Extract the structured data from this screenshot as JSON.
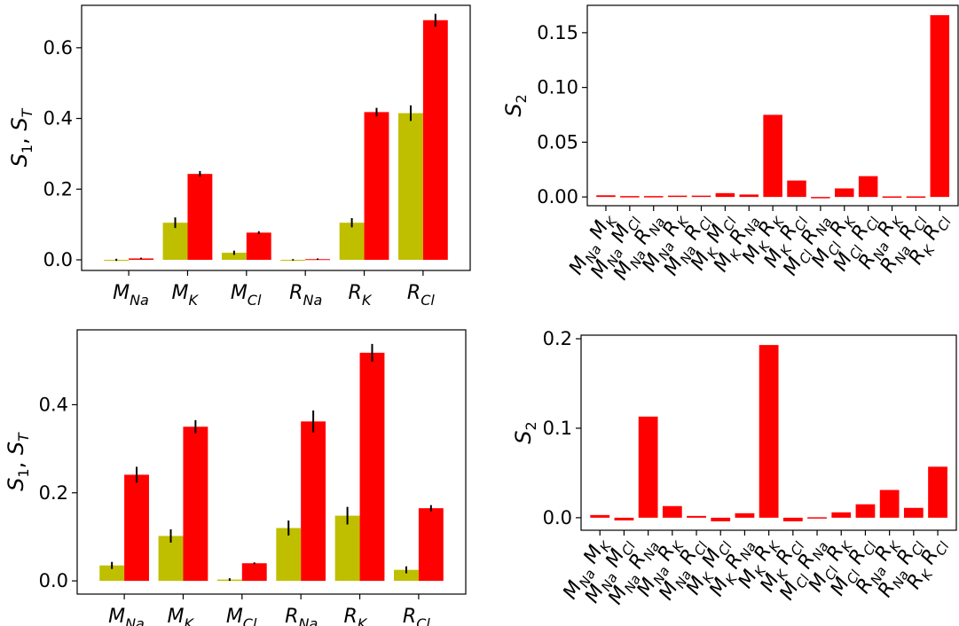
{
  "chart_data": [
    {
      "id": "top-left",
      "type": "bar",
      "ylabel": "S_1, S_T",
      "ylim": [
        -0.03,
        0.72
      ],
      "yticks": [
        0.0,
        0.2,
        0.4,
        0.6
      ],
      "yticklabels": [
        "0.0",
        "0.2",
        "0.4",
        "0.6"
      ],
      "categories": [
        [
          "M",
          "Na"
        ],
        [
          "M",
          "K"
        ],
        [
          "M",
          "Cl"
        ],
        [
          "R",
          "Na"
        ],
        [
          "R",
          "K"
        ],
        [
          "R",
          "Cl"
        ]
      ],
      "series": [
        {
          "values": [
            0.0,
            0.105,
            0.02,
            0.0,
            0.105,
            0.415
          ],
          "errors": [
            0.003,
            0.015,
            0.006,
            0.002,
            0.013,
            0.022
          ],
          "color": "#bfbf00"
        },
        {
          "values": [
            0.004,
            0.243,
            0.077,
            0.002,
            0.418,
            0.678
          ],
          "errors": [
            0.002,
            0.008,
            0.004,
            0.002,
            0.012,
            0.018
          ],
          "color": "#ff0000"
        }
      ]
    },
    {
      "id": "top-right",
      "type": "bar",
      "ylabel": "S_2",
      "ylim": [
        -0.008,
        0.175
      ],
      "yticks": [
        0.0,
        0.05,
        0.1,
        0.15
      ],
      "yticklabels": [
        "0.00",
        "0.05",
        "0.10",
        "0.15"
      ],
      "categories": [
        [
          [
            "M",
            "Na"
          ],
          [
            "M",
            "K"
          ]
        ],
        [
          [
            "M",
            "Na"
          ],
          [
            "M",
            "Cl"
          ]
        ],
        [
          [
            "M",
            "Na"
          ],
          [
            "R",
            "Na"
          ]
        ],
        [
          [
            "M",
            "Na"
          ],
          [
            "R",
            "K"
          ]
        ],
        [
          [
            "M",
            "Na"
          ],
          [
            "R",
            "Cl"
          ]
        ],
        [
          [
            "M",
            "K"
          ],
          [
            "M",
            "Cl"
          ]
        ],
        [
          [
            "M",
            "K"
          ],
          [
            "R",
            "Na"
          ]
        ],
        [
          [
            "M",
            "K"
          ],
          [
            "R",
            "K"
          ]
        ],
        [
          [
            "M",
            "K"
          ],
          [
            "R",
            "Cl"
          ]
        ],
        [
          [
            "M",
            "Cl"
          ],
          [
            "R",
            "Na"
          ]
        ],
        [
          [
            "M",
            "Cl"
          ],
          [
            "R",
            "K"
          ]
        ],
        [
          [
            "M",
            "Cl"
          ],
          [
            "R",
            "Cl"
          ]
        ],
        [
          [
            "R",
            "Na"
          ],
          [
            "R",
            "K"
          ]
        ],
        [
          [
            "R",
            "Na"
          ],
          [
            "R",
            "Cl"
          ]
        ],
        [
          [
            "R",
            "K"
          ],
          [
            "R",
            "Cl"
          ]
        ]
      ],
      "series": [
        {
          "values": [
            0.0015,
            0.0008,
            0.0008,
            0.0012,
            0.0012,
            0.0035,
            0.0022,
            0.075,
            0.015,
            -0.0005,
            0.0078,
            0.019,
            0.0005,
            0.0005,
            0.166
          ],
          "color": "#ff0000"
        }
      ]
    },
    {
      "id": "bottom-left",
      "type": "bar",
      "ylabel": "S_1, S_T",
      "ylim": [
        -0.03,
        0.57
      ],
      "yticks": [
        0.0,
        0.2,
        0.4
      ],
      "yticklabels": [
        "0.0",
        "0.2",
        "0.4"
      ],
      "categories": [
        [
          "M",
          "Na"
        ],
        [
          "M",
          "K"
        ],
        [
          "M",
          "Cl"
        ],
        [
          "R",
          "Na"
        ],
        [
          "R",
          "K"
        ],
        [
          "R",
          "Cl"
        ]
      ],
      "series": [
        {
          "values": [
            0.035,
            0.102,
            0.003,
            0.12,
            0.148,
            0.025
          ],
          "errors": [
            0.008,
            0.015,
            0.003,
            0.017,
            0.02,
            0.008
          ],
          "color": "#bfbf00"
        },
        {
          "values": [
            0.241,
            0.35,
            0.04,
            0.362,
            0.518,
            0.165
          ],
          "errors": [
            0.018,
            0.015,
            0.002,
            0.025,
            0.02,
            0.007
          ],
          "color": "#ff0000"
        }
      ]
    },
    {
      "id": "bottom-right",
      "type": "bar",
      "ylabel": "S_2",
      "ylim": [
        -0.014,
        0.204
      ],
      "yticks": [
        0.0,
        0.1,
        0.2
      ],
      "yticklabels": [
        "0.0",
        "0.1",
        "0.2"
      ],
      "categories": [
        [
          [
            "M",
            "Na"
          ],
          [
            "M",
            "K"
          ]
        ],
        [
          [
            "M",
            "Na"
          ],
          [
            "M",
            "Cl"
          ]
        ],
        [
          [
            "M",
            "Na"
          ],
          [
            "R",
            "Na"
          ]
        ],
        [
          [
            "M",
            "Na"
          ],
          [
            "R",
            "K"
          ]
        ],
        [
          [
            "M",
            "Na"
          ],
          [
            "R",
            "Cl"
          ]
        ],
        [
          [
            "M",
            "K"
          ],
          [
            "M",
            "Cl"
          ]
        ],
        [
          [
            "M",
            "K"
          ],
          [
            "R",
            "Na"
          ]
        ],
        [
          [
            "M",
            "K"
          ],
          [
            "R",
            "K"
          ]
        ],
        [
          [
            "M",
            "K"
          ],
          [
            "R",
            "Cl"
          ]
        ],
        [
          [
            "M",
            "Cl"
          ],
          [
            "R",
            "Na"
          ]
        ],
        [
          [
            "M",
            "Cl"
          ],
          [
            "R",
            "K"
          ]
        ],
        [
          [
            "M",
            "Cl"
          ],
          [
            "R",
            "Cl"
          ]
        ],
        [
          [
            "R",
            "Na"
          ],
          [
            "R",
            "K"
          ]
        ],
        [
          [
            "R",
            "Na"
          ],
          [
            "R",
            "Cl"
          ]
        ],
        [
          [
            "R",
            "K"
          ],
          [
            "R",
            "Cl"
          ]
        ]
      ],
      "series": [
        {
          "values": [
            0.003,
            -0.003,
            0.113,
            0.013,
            0.002,
            -0.004,
            0.005,
            0.193,
            -0.004,
            0.0005,
            0.006,
            0.015,
            0.031,
            0.011,
            0.057
          ],
          "color": "#ff0000"
        }
      ]
    }
  ]
}
